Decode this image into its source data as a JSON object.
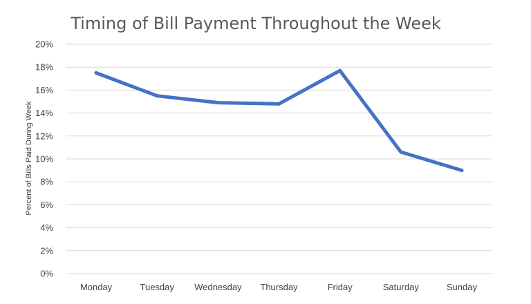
{
  "chart_data": {
    "type": "line",
    "title": "Timing of Bill Payment Throughout the Week",
    "xlabel": "",
    "ylabel": "Percent of Bills Paid During Week",
    "categories": [
      "Monday",
      "Tuesday",
      "Wednesday",
      "Thursday",
      "Friday",
      "Saturday",
      "Sunday"
    ],
    "series": [
      {
        "values": [
          17.5,
          15.5,
          14.9,
          14.8,
          17.7,
          10.6,
          9.0
        ]
      }
    ],
    "ylim": [
      0,
      20
    ],
    "yticks": [
      0,
      2,
      4,
      6,
      8,
      10,
      12,
      14,
      16,
      18,
      20
    ],
    "ytick_labels": [
      "0%",
      "2%",
      "4%",
      "6%",
      "8%",
      "10%",
      "12%",
      "14%",
      "16%",
      "18%",
      "20%"
    ],
    "grid": true,
    "legend": "none",
    "colors": {
      "series": "#4472c4",
      "grid": "#d9d9d9",
      "text": "#404040",
      "title": "#595959"
    }
  }
}
